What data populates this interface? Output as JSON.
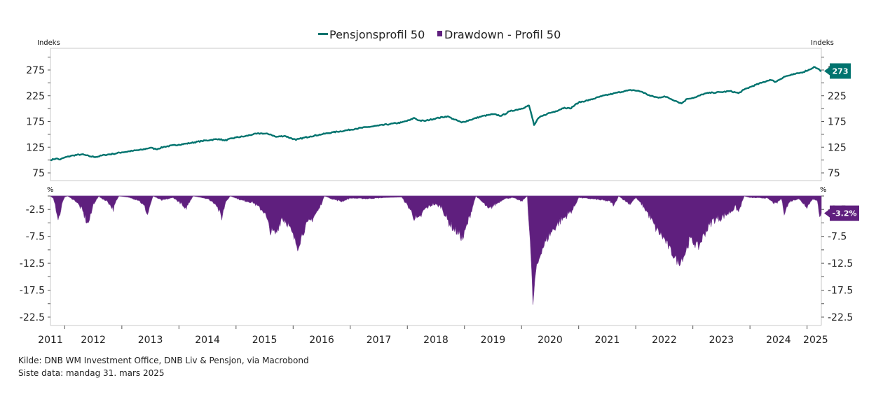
{
  "chart_data": [
    {
      "type": "line",
      "panel": "top",
      "title": "",
      "legend": [
        {
          "name": "Pensjonsprofil 50",
          "marker": "line",
          "color": "#00736E"
        },
        {
          "name": "Drawdown - Profil 50",
          "marker": "square",
          "color": "#5F1F7E"
        }
      ],
      "legend_position": "top-center",
      "ylabel_left": "Indeks",
      "ylabel_right": "Indeks",
      "ylim": [
        55,
        305
      ],
      "yticks": [
        75,
        125,
        175,
        225,
        275
      ],
      "ytick_labels": [
        "75",
        "125",
        "175",
        "225",
        "275"
      ],
      "last_value_label": "273",
      "series": [
        {
          "name": "Pensjonsprofil 50",
          "color": "#00736E",
          "x": [
            2011.75,
            2011.85,
            2011.92,
            2012.0,
            2012.15,
            2012.3,
            2012.45,
            2012.55,
            2012.7,
            2012.85,
            2013.0,
            2013.2,
            2013.35,
            2013.5,
            2013.6,
            2013.75,
            2014.0,
            2014.2,
            2014.4,
            2014.55,
            2014.7,
            2014.8,
            2015.0,
            2015.15,
            2015.3,
            2015.45,
            2015.6,
            2015.7,
            2015.85,
            2016.05,
            2016.1,
            2016.3,
            2016.5,
            2016.7,
            2016.9,
            2017.1,
            2017.3,
            2017.5,
            2017.7,
            2017.9,
            2018.05,
            2018.12,
            2018.2,
            2018.3,
            2018.5,
            2018.7,
            2018.8,
            2018.95,
            2019.1,
            2019.3,
            2019.5,
            2019.65,
            2019.8,
            2020.0,
            2020.13,
            2020.17,
            2020.22,
            2020.3,
            2020.45,
            2020.6,
            2020.75,
            2020.85,
            2021.0,
            2021.2,
            2021.4,
            2021.6,
            2021.8,
            2021.95,
            2022.1,
            2022.25,
            2022.4,
            2022.5,
            2022.7,
            2022.8,
            2022.9,
            2023.05,
            2023.2,
            2023.35,
            2023.5,
            2023.65,
            2023.8,
            2023.9,
            2024.05,
            2024.2,
            2024.35,
            2024.45,
            2024.6,
            2024.75,
            2024.9,
            2025.05,
            2025.12,
            2025.18,
            2025.25
          ],
          "values": [
            100,
            103,
            101,
            105,
            109,
            111,
            107,
            106,
            110,
            112,
            115,
            118,
            120,
            124,
            121,
            126,
            130,
            133,
            137,
            139,
            141,
            138,
            144,
            146,
            150,
            152,
            150,
            145,
            147,
            139,
            141,
            146,
            150,
            154,
            157,
            161,
            164,
            167,
            170,
            173,
            178,
            182,
            177,
            176,
            181,
            185,
            180,
            173,
            178,
            185,
            189,
            186,
            195,
            200,
            206,
            190,
            168,
            182,
            190,
            195,
            202,
            200,
            212,
            217,
            224,
            229,
            234,
            236,
            233,
            225,
            221,
            224,
            215,
            210,
            219,
            222,
            229,
            231,
            232,
            234,
            230,
            237,
            244,
            250,
            256,
            252,
            262,
            266,
            270,
            276,
            281,
            278,
            273
          ]
        }
      ]
    },
    {
      "type": "area",
      "panel": "bottom",
      "title": "",
      "ylabel_left": "%",
      "ylabel_right": "%",
      "ylim": [
        -25,
        0
      ],
      "yticks": [
        -2.5,
        -7.5,
        -12.5,
        -17.5,
        -22.5
      ],
      "ytick_labels": [
        "-2.5",
        "-7.5",
        "-12.5",
        "-17.5",
        "-22.5"
      ],
      "last_value_label": "-3.2%",
      "series": [
        {
          "name": "Drawdown - Profil 50",
          "color": "#5F1F7E",
          "x": [
            2011.75,
            2011.8,
            2011.85,
            2011.9,
            2011.95,
            2012.0,
            2012.05,
            2012.2,
            2012.3,
            2012.4,
            2012.45,
            2012.5,
            2012.6,
            2012.62,
            2012.75,
            2012.85,
            2012.9,
            2012.95,
            2013.1,
            2013.3,
            2013.4,
            2013.45,
            2013.5,
            2013.55,
            2013.7,
            2013.9,
            2014.05,
            2014.1,
            2014.2,
            2014.25,
            2014.5,
            2014.65,
            2014.75,
            2014.82,
            2014.9,
            2015.1,
            2015.3,
            2015.5,
            2015.6,
            2015.7,
            2015.8,
            2015.9,
            2016.0,
            2016.08,
            2016.2,
            2016.35,
            2016.45,
            2016.55,
            2016.7,
            2016.85,
            2017.0,
            2017.3,
            2017.6,
            2017.9,
            2018.05,
            2018.12,
            2018.2,
            2018.3,
            2018.45,
            2018.6,
            2018.7,
            2018.8,
            2018.9,
            2018.97,
            2019.1,
            2019.2,
            2019.35,
            2019.42,
            2019.55,
            2019.7,
            2019.85,
            2020.0,
            2020.1,
            2020.15,
            2020.2,
            2020.25,
            2020.35,
            2020.5,
            2020.65,
            2020.8,
            2020.9,
            2021.0,
            2021.3,
            2021.55,
            2021.62,
            2021.7,
            2021.8,
            2021.9,
            2022.0,
            2022.1,
            2022.2,
            2022.35,
            2022.5,
            2022.6,
            2022.75,
            2022.85,
            2022.95,
            2023.1,
            2023.2,
            2023.35,
            2023.5,
            2023.65,
            2023.75,
            2023.8,
            2023.9,
            2024.0,
            2024.3,
            2024.45,
            2024.55,
            2024.6,
            2024.7,
            2024.85,
            2024.95,
            2025.0,
            2025.1,
            2025.18,
            2025.22,
            2025.25
          ],
          "values": [
            0,
            -0.5,
            -2.5,
            -4.5,
            -1.5,
            -0.2,
            0,
            -1.0,
            -2.5,
            -5.2,
            -4.0,
            -1.5,
            0,
            -0.3,
            -1.0,
            -2.5,
            -1.0,
            0,
            -0.2,
            -0.8,
            -2.0,
            -3.5,
            -1.5,
            0,
            -0.8,
            -0.3,
            -1.5,
            -2.7,
            -0.8,
            0,
            -0.5,
            -1.5,
            -4.0,
            -1.0,
            0,
            -0.8,
            -1.2,
            -3.0,
            -6.5,
            -7.0,
            -4.0,
            -5.0,
            -7.5,
            -9.5,
            -6.0,
            -4.0,
            -2.5,
            0,
            -0.6,
            -1.0,
            -0.4,
            -0.5,
            -0.3,
            -0.2,
            -2.5,
            -4.0,
            -4.5,
            -2.5,
            -1.5,
            -2.0,
            -4.5,
            -6.0,
            -7.0,
            -8.0,
            -3.5,
            0,
            -1.5,
            -2.5,
            -1.5,
            -0.5,
            -0.3,
            -1.0,
            0,
            -8.0,
            -20.0,
            -14.0,
            -10.0,
            -7.0,
            -5.0,
            -3.5,
            -2.5,
            -0.3,
            -0.6,
            -1.0,
            -1.8,
            0,
            -0.8,
            -1.5,
            -0.3,
            -1.5,
            -3.0,
            -6.0,
            -8.0,
            -10.0,
            -12.5,
            -11.0,
            -8.0,
            -9.5,
            -7.0,
            -4.5,
            -4.0,
            -3.0,
            -2.0,
            -3.0,
            0,
            -0.3,
            -0.4,
            -1.5,
            -0.5,
            -3.0,
            -1.0,
            -0.5,
            -1.5,
            -2.0,
            -0.5,
            -1.0,
            -3.5,
            -3.2
          ]
        }
      ]
    }
  ],
  "xaxis": {
    "xlim": [
      2011.75,
      2025.25
    ],
    "tick_years": [
      2012,
      2013,
      2014,
      2015,
      2016,
      2017,
      2018,
      2019,
      2020,
      2021,
      2022,
      2023,
      2024,
      2025
    ],
    "labels": [
      {
        "text": "2011",
        "x": 2011.75
      },
      {
        "text": "2012",
        "x": 2012.5
      },
      {
        "text": "2013",
        "x": 2013.5
      },
      {
        "text": "2014",
        "x": 2014.5
      },
      {
        "text": "2015",
        "x": 2015.5
      },
      {
        "text": "2016",
        "x": 2016.5
      },
      {
        "text": "2017",
        "x": 2017.5
      },
      {
        "text": "2018",
        "x": 2018.5
      },
      {
        "text": "2019",
        "x": 2019.5
      },
      {
        "text": "2020",
        "x": 2020.5
      },
      {
        "text": "2021",
        "x": 2021.5
      },
      {
        "text": "2022",
        "x": 2022.5
      },
      {
        "text": "2023",
        "x": 2023.5
      },
      {
        "text": "2024",
        "x": 2024.5
      },
      {
        "text": "2025",
        "x": 2025.15
      }
    ]
  },
  "footer": {
    "source": "Kilde: DNB WM Investment Office, DNB Liv & Pensjon, via Macrobond",
    "last_data": "Siste data: mandag 31. mars 2025"
  }
}
